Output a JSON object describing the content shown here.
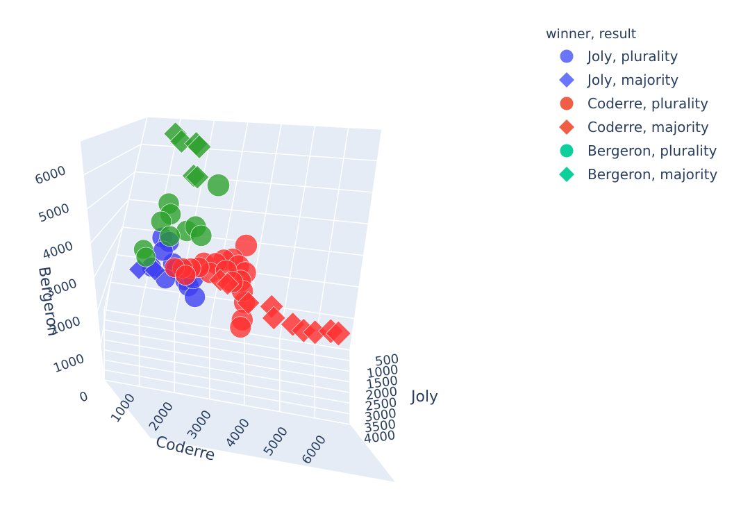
{
  "chart_data": {
    "type": "scatter3d",
    "axes": {
      "x": {
        "label": "Joly",
        "ticks": [
          "500",
          "1000",
          "1500",
          "2000",
          "2500",
          "3000",
          "3500",
          "4000"
        ]
      },
      "y": {
        "label": "Coderre",
        "ticks": [
          "1000",
          "2000",
          "3000",
          "4000",
          "5000",
          "6000"
        ]
      },
      "z": {
        "label": "Bergeron",
        "ticks": [
          "0",
          "1000",
          "2000",
          "3000",
          "4000",
          "5000",
          "6000"
        ]
      }
    },
    "legend": {
      "title": "winner, result",
      "placement": "top-right",
      "entries": [
        {
          "label": "Joly, plurality",
          "color": "#636efa",
          "symbol": "circle"
        },
        {
          "label": "Joly, majority",
          "color": "#636efa",
          "symbol": "diamond"
        },
        {
          "label": "Coderre, plurality",
          "color": "#ef553b",
          "symbol": "circle"
        },
        {
          "label": "Coderre, majority",
          "color": "#ef553b",
          "symbol": "diamond"
        },
        {
          "label": "Bergeron, plurality",
          "color": "#00cc96",
          "symbol": "circle"
        },
        {
          "label": "Bergeron, majority",
          "color": "#00cc96",
          "symbol": "diamond"
        }
      ]
    },
    "series": [
      {
        "name": "Joly, plurality",
        "color": "#3b3bf0",
        "symbol": "circle",
        "points": [
          [
            1800,
            1200,
            3100
          ],
          [
            1700,
            1400,
            2950
          ],
          [
            2000,
            1600,
            2400
          ],
          [
            1600,
            1300,
            2600
          ],
          [
            2200,
            1700,
            2300
          ],
          [
            1900,
            1900,
            2200
          ],
          [
            2100,
            2000,
            1950
          ],
          [
            2300,
            2100,
            1850
          ],
          [
            1500,
            1100,
            2000
          ],
          [
            2600,
            2300,
            1650
          ],
          [
            1800,
            1500,
            1800
          ],
          [
            2000,
            2200,
            2000
          ]
        ]
      },
      {
        "name": "Joly, majority",
        "color": "#3b3bf0",
        "symbol": "diamond",
        "points": [
          [
            1300,
            800,
            1800
          ],
          [
            1600,
            1200,
            1950
          ]
        ]
      },
      {
        "name": "Coderre, plurality",
        "color": "#ff3030",
        "symbol": "circle",
        "points": [
          [
            2200,
            3400,
            3300
          ],
          [
            2400,
            3100,
            2900
          ],
          [
            2000,
            2900,
            2700
          ],
          [
            2200,
            3300,
            2650
          ],
          [
            2300,
            3500,
            2500
          ],
          [
            1900,
            2400,
            2500
          ],
          [
            2100,
            2700,
            2600
          ],
          [
            2500,
            3400,
            2300
          ],
          [
            2000,
            2600,
            2250
          ],
          [
            1800,
            2300,
            2300
          ],
          [
            2600,
            3600,
            1700
          ],
          [
            3000,
            3600,
            1300
          ],
          [
            2800,
            3600,
            1000
          ],
          [
            2500,
            3500,
            2000
          ],
          [
            1700,
            2100,
            2200
          ],
          [
            1500,
            1900,
            2100
          ],
          [
            1400,
            1700,
            2050
          ],
          [
            1800,
            2000,
            2000
          ],
          [
            2200,
            3000,
            2450
          ],
          [
            2400,
            3200,
            2200
          ]
        ]
      },
      {
        "name": "Coderre, majority",
        "color": "#ff3030",
        "symbol": "diamond",
        "points": [
          [
            2100,
            2900,
            2100
          ],
          [
            2200,
            3100,
            2050
          ],
          [
            2600,
            3700,
            1700
          ],
          [
            2900,
            4300,
            1800
          ],
          [
            3000,
            4400,
            1500
          ],
          [
            3300,
            4900,
            1500
          ],
          [
            3400,
            5200,
            1400
          ],
          [
            3400,
            5500,
            1400
          ],
          [
            3400,
            5900,
            1500
          ],
          [
            3500,
            6100,
            1500
          ]
        ]
      },
      {
        "name": "Bergeron, plurality",
        "color": "#2ca02c",
        "symbol": "circle",
        "points": [
          [
            1500,
            1200,
            4100
          ],
          [
            1600,
            1300,
            3800
          ],
          [
            1500,
            1100,
            3500
          ],
          [
            1700,
            2400,
            4900
          ],
          [
            1800,
            1800,
            3400
          ],
          [
            1900,
            2000,
            3600
          ],
          [
            1800,
            2200,
            3300
          ],
          [
            1600,
            1400,
            3100
          ],
          [
            1400,
            800,
            2500
          ],
          [
            1500,
            900,
            2300
          ]
        ]
      },
      {
        "name": "Bergeron, majority",
        "color": "#2ca02c",
        "symbol": "diamond",
        "points": [
          [
            1300,
            1000,
            6300
          ],
          [
            1400,
            1200,
            6100
          ],
          [
            1500,
            1600,
            6100
          ],
          [
            1500,
            1700,
            6000
          ],
          [
            1600,
            1700,
            5100
          ],
          [
            1700,
            1800,
            5100
          ]
        ]
      }
    ]
  }
}
